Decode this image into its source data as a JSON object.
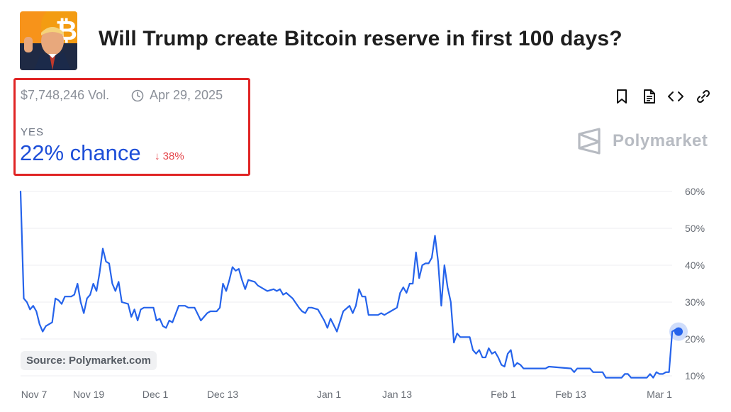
{
  "header": {
    "title": "Will Trump create Bitcoin reserve in first 100 days?",
    "avatar_icon": "trump-bitcoin-avatar"
  },
  "market": {
    "volume": "$7,748,246 Vol.",
    "end_date": "Apr 29, 2025",
    "outcome_label": "YES",
    "chance_text": "22% chance",
    "change_text": "38%",
    "change_direction": "down"
  },
  "toolbar": {
    "icons": [
      "bookmark-icon",
      "document-icon",
      "embed-code-icon",
      "link-icon"
    ]
  },
  "brand": {
    "name": "Polymarket"
  },
  "source": {
    "text": "Source: Polymarket.com"
  },
  "colors": {
    "accent": "#1d4ed8",
    "line": "#2563eb",
    "negative": "#e5484d",
    "highlight_border": "#e02424"
  },
  "chart_data": {
    "type": "line",
    "title": "",
    "xlabel": "",
    "ylabel": "",
    "x_ticks": [
      "Nov 7",
      "Nov 19",
      "Dec 1",
      "Dec 13",
      "Jan 1",
      "Jan 13",
      "Feb 1",
      "Feb 13",
      "Mar 1"
    ],
    "y_ticks": [
      "60%",
      "50%",
      "40%",
      "30%",
      "20%",
      "10%"
    ],
    "ylim": [
      8,
      60
    ],
    "x_unit": "days since Nov 7",
    "grid": true,
    "series": [
      {
        "name": "",
        "values": [
          [
            0,
            60
          ],
          [
            0.5,
            31
          ],
          [
            1,
            30
          ],
          [
            1.5,
            28
          ],
          [
            2,
            29
          ],
          [
            2.5,
            27.5
          ],
          [
            3,
            24
          ],
          [
            3.5,
            22
          ],
          [
            4,
            23.5
          ],
          [
            5,
            24.5
          ],
          [
            5.5,
            31
          ],
          [
            6,
            30.5
          ],
          [
            6.5,
            29.5
          ],
          [
            7,
            31.5
          ],
          [
            8,
            31.5
          ],
          [
            8.5,
            32
          ],
          [
            9,
            35
          ],
          [
            9.5,
            30
          ],
          [
            10,
            27
          ],
          [
            10.5,
            31
          ],
          [
            11,
            32
          ],
          [
            11.5,
            35
          ],
          [
            12,
            33
          ],
          [
            12.5,
            38
          ],
          [
            13,
            44.5
          ],
          [
            13.5,
            41
          ],
          [
            14,
            40.5
          ],
          [
            14.5,
            35
          ],
          [
            15,
            33
          ],
          [
            15.5,
            35.5
          ],
          [
            16,
            30
          ],
          [
            17,
            29.5
          ],
          [
            17.5,
            26
          ],
          [
            18,
            28
          ],
          [
            18.5,
            25
          ],
          [
            19,
            28
          ],
          [
            19.5,
            28.5
          ],
          [
            20,
            28.5
          ],
          [
            21,
            28.5
          ],
          [
            21.5,
            25
          ],
          [
            22,
            25.5
          ],
          [
            22.5,
            23.5
          ],
          [
            23,
            23
          ],
          [
            23.5,
            25
          ],
          [
            24,
            24.5
          ],
          [
            25,
            29
          ],
          [
            26,
            29
          ],
          [
            26.5,
            28.5
          ],
          [
            27.5,
            28.5
          ],
          [
            28.5,
            25
          ],
          [
            29.5,
            27
          ],
          [
            30,
            27.5
          ],
          [
            31,
            27.5
          ],
          [
            31.5,
            28.5
          ],
          [
            32,
            35
          ],
          [
            32.5,
            33
          ],
          [
            33,
            36
          ],
          [
            33.5,
            39.5
          ],
          [
            34,
            38.5
          ],
          [
            34.5,
            39
          ],
          [
            35,
            36
          ],
          [
            35.5,
            33.5
          ],
          [
            36,
            36
          ],
          [
            37,
            35.5
          ],
          [
            37.5,
            34.5
          ],
          [
            38.5,
            33.5
          ],
          [
            39,
            33
          ],
          [
            40,
            33.5
          ],
          [
            40.5,
            33
          ],
          [
            41,
            33.5
          ],
          [
            41.5,
            32
          ],
          [
            42,
            32.5
          ],
          [
            43,
            31
          ],
          [
            44,
            28.5
          ],
          [
            44.5,
            27.5
          ],
          [
            45,
            27
          ],
          [
            45.5,
            28.5
          ],
          [
            46,
            28.5
          ],
          [
            47,
            28
          ],
          [
            48,
            25
          ],
          [
            48.5,
            23
          ],
          [
            49,
            25.5
          ],
          [
            50,
            22
          ],
          [
            51,
            27.5
          ],
          [
            52,
            29
          ],
          [
            52.5,
            27
          ],
          [
            53,
            29
          ],
          [
            53.5,
            33.5
          ],
          [
            54,
            31.5
          ],
          [
            54.5,
            31.5
          ],
          [
            55,
            26.5
          ],
          [
            56.5,
            26.5
          ],
          [
            57,
            27
          ],
          [
            57.5,
            26.5
          ],
          [
            58,
            27
          ],
          [
            58.5,
            27.5
          ],
          [
            59.5,
            28.5
          ],
          [
            60,
            32.5
          ],
          [
            60.5,
            34
          ],
          [
            61,
            32.5
          ],
          [
            61.5,
            35
          ],
          [
            62,
            35
          ],
          [
            62.5,
            43.5
          ],
          [
            63,
            36.5
          ],
          [
            63.5,
            40
          ],
          [
            64,
            40.5
          ],
          [
            64.5,
            40.5
          ],
          [
            65,
            42
          ],
          [
            65.5,
            48
          ],
          [
            66,
            41
          ],
          [
            66.5,
            29
          ],
          [
            67,
            40
          ],
          [
            67.5,
            34
          ],
          [
            68,
            30
          ],
          [
            68.5,
            19
          ],
          [
            69,
            21.5
          ],
          [
            69.5,
            20.5
          ],
          [
            71,
            20.5
          ],
          [
            71.5,
            17
          ],
          [
            72,
            16
          ],
          [
            72.5,
            17
          ],
          [
            73,
            15
          ],
          [
            73.5,
            15
          ],
          [
            74,
            17.5
          ],
          [
            74.5,
            16
          ],
          [
            75,
            16.5
          ],
          [
            75.5,
            15
          ],
          [
            76,
            13
          ],
          [
            76.5,
            12.5
          ],
          [
            77,
            16
          ],
          [
            77.5,
            17
          ],
          [
            78,
            12.5
          ],
          [
            78.5,
            13.5
          ],
          [
            79,
            13
          ],
          [
            79.5,
            12
          ],
          [
            83,
            12
          ],
          [
            83.5,
            12.5
          ],
          [
            87,
            12
          ],
          [
            87.5,
            11
          ],
          [
            88,
            12
          ],
          [
            90,
            12
          ],
          [
            90.5,
            11
          ],
          [
            92,
            11
          ],
          [
            92.5,
            9.5
          ],
          [
            95,
            9.5
          ],
          [
            95.5,
            10.5
          ],
          [
            96,
            10.5
          ],
          [
            96.5,
            9.5
          ],
          [
            99,
            9.5
          ],
          [
            99.5,
            10.5
          ],
          [
            100,
            9.5
          ],
          [
            100.5,
            11
          ],
          [
            101,
            10.5
          ],
          [
            101.5,
            10.5
          ],
          [
            102,
            11
          ],
          [
            102.5,
            11
          ],
          [
            103,
            22
          ],
          [
            103.5,
            22.5
          ],
          [
            104,
            22
          ]
        ]
      }
    ],
    "current_point": {
      "x": 104,
      "y": 22
    }
  }
}
